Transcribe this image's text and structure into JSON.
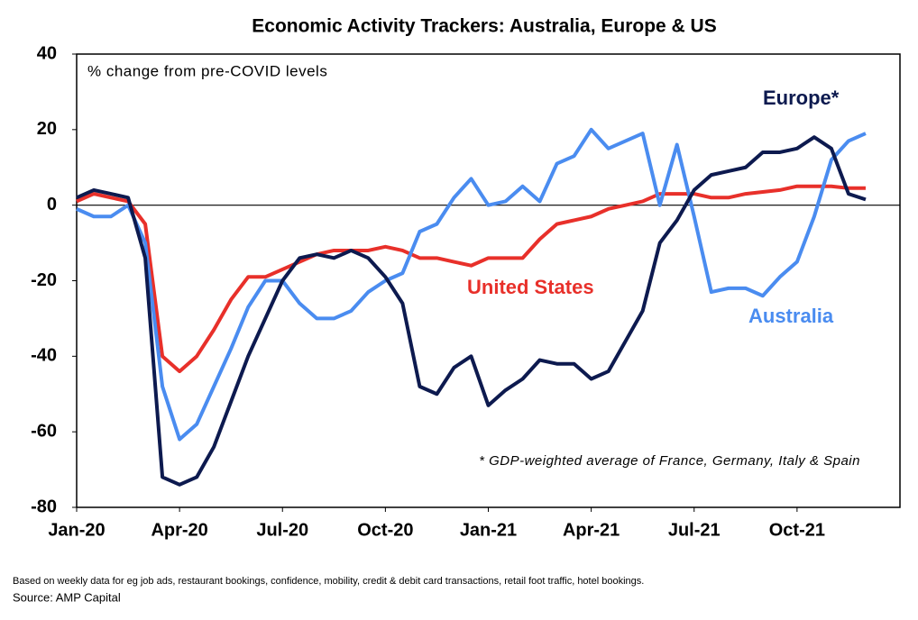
{
  "chart_data": {
    "type": "line",
    "title": "Economic Activity Trackers: Australia, Europe & US",
    "subtitle": "% change from pre-COVID levels",
    "annotation": "* GDP-weighted average of France, Germany, Italy & Spain",
    "footnote": "Based on weekly data for eg job ads, restaurant bookings, confidence, mobility, credit & debit card transactions, retail foot traffic, hotel bookings.",
    "source": "Source: AMP Capital",
    "x": [
      0,
      0.5,
      1,
      1.5,
      2,
      2.5,
      3,
      3.5,
      4,
      4.5,
      5,
      5.5,
      6,
      6.5,
      7,
      7.5,
      8,
      8.5,
      9,
      9.5,
      10,
      10.5,
      11,
      11.5,
      12,
      12.5,
      13,
      13.5,
      14,
      14.5,
      15,
      15.5,
      16,
      16.5,
      17,
      17.5,
      18,
      18.5,
      19,
      19.5,
      20,
      20.5,
      21,
      21.5,
      22,
      22.5,
      23
    ],
    "xlim": [
      0,
      24
    ],
    "xticks": [
      {
        "value": 0,
        "label": "Jan-20"
      },
      {
        "value": 3,
        "label": "Apr-20"
      },
      {
        "value": 6,
        "label": "Jul-20"
      },
      {
        "value": 9,
        "label": "Oct-20"
      },
      {
        "value": 12,
        "label": "Jan-21"
      },
      {
        "value": 15,
        "label": "Apr-21"
      },
      {
        "value": 18,
        "label": "Jul-21"
      },
      {
        "value": 21,
        "label": "Oct-21"
      }
    ],
    "ylim": [
      -80,
      40
    ],
    "yticks": [
      -80,
      -60,
      -40,
      -20,
      0,
      20,
      40
    ],
    "series": [
      {
        "name": "Europe*",
        "color": "#0d1a4f",
        "values": [
          2,
          4,
          3,
          2,
          -14,
          -72,
          -74,
          -72,
          -64,
          -52,
          -40,
          -30,
          -20,
          -14,
          -13,
          -14,
          -12,
          -14,
          -19,
          -26,
          -48,
          -50,
          -43,
          -40,
          -53,
          -49,
          -46,
          -41,
          -42,
          -42,
          -46,
          -44,
          -36,
          -28,
          -10,
          -4,
          4,
          8,
          9,
          10,
          14,
          14,
          15,
          18,
          15,
          3,
          1.5
        ]
      },
      {
        "name": "United States",
        "color": "#e8302a",
        "values": [
          1,
          3,
          2,
          1,
          -5,
          -40,
          -44,
          -40,
          -33,
          -25,
          -19,
          -19,
          -17,
          -15,
          -13,
          -12,
          -12,
          -12,
          -11,
          -12,
          -14,
          -14,
          -15,
          -16,
          -14,
          -14,
          -14,
          -9,
          -5,
          -4,
          -3,
          -1,
          0,
          1,
          3,
          3,
          3,
          2,
          2,
          3,
          3.5,
          4,
          5,
          5,
          5,
          4.5,
          4.5
        ]
      },
      {
        "name": "Australia",
        "color": "#4a8cf0",
        "values": [
          -1,
          -3,
          -3,
          0,
          -10,
          -48,
          -62,
          -58,
          -48,
          -38,
          -27,
          -20,
          -20,
          -26,
          -30,
          -30,
          -28,
          -23,
          -20,
          -18,
          -7,
          -5,
          2,
          7,
          0,
          1,
          5,
          1,
          11,
          13,
          20,
          15,
          17,
          19,
          0,
          16,
          -3,
          -23,
          -22,
          -22,
          -24,
          -19,
          -15,
          -3,
          12,
          17,
          19
        ]
      }
    ]
  }
}
